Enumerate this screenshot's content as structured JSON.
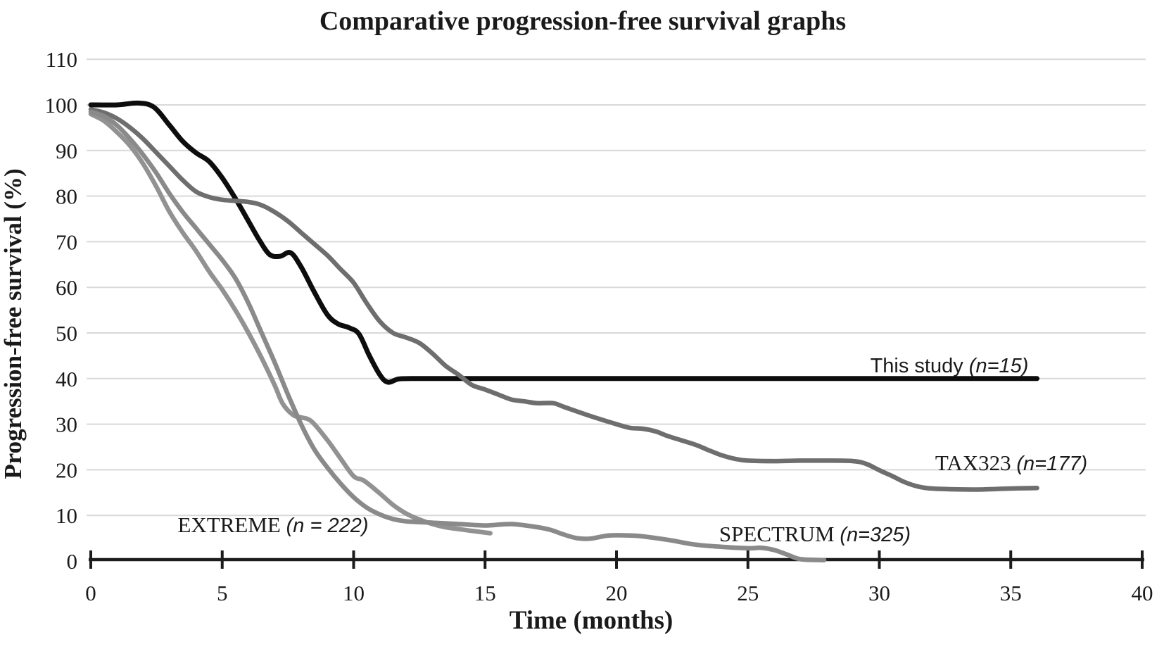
{
  "title": "Comparative progression-free survival graphs",
  "chart_data": {
    "type": "line",
    "title": "Comparative progression-free survival graphs",
    "xlabel": "Time (months)",
    "ylabel": "Progression-free survival (%)",
    "xlim": [
      0,
      40
    ],
    "ylim": [
      0,
      110
    ],
    "x_ticks": [
      0,
      5,
      10,
      15,
      20,
      25,
      30,
      35,
      40
    ],
    "y_ticks": [
      0,
      10,
      20,
      30,
      40,
      50,
      60,
      70,
      80,
      90,
      100,
      110
    ],
    "grid": "horizontal",
    "gridline_color": "#d9d9d9",
    "axis_color": "#1c1c1c",
    "legend_position": "inline-labels",
    "series": [
      {
        "name": "This study ",
        "n_label": "(n=15)",
        "color": "#0d0d0d",
        "stroke_width": 7,
        "points": [
          [
            0,
            100
          ],
          [
            1,
            100
          ],
          [
            1.8,
            100.4
          ],
          [
            2.4,
            99.5
          ],
          [
            3,
            95.5
          ],
          [
            3.5,
            92
          ],
          [
            4,
            89.5
          ],
          [
            4.5,
            87.6
          ],
          [
            5,
            84
          ],
          [
            5.5,
            79.5
          ],
          [
            6,
            74.5
          ],
          [
            6.4,
            70.5
          ],
          [
            6.8,
            67.2
          ],
          [
            7.2,
            66.8
          ],
          [
            7.6,
            67.6
          ],
          [
            8,
            64.5
          ],
          [
            8.5,
            59
          ],
          [
            9,
            54
          ],
          [
            9.4,
            52
          ],
          [
            9.8,
            51.2
          ],
          [
            10.2,
            49.8
          ],
          [
            10.6,
            45
          ],
          [
            11,
            40.8
          ],
          [
            11.3,
            39.2
          ],
          [
            11.7,
            39.9
          ],
          [
            12.2,
            40
          ],
          [
            14,
            40
          ],
          [
            18,
            40
          ],
          [
            22,
            40
          ],
          [
            26,
            40
          ],
          [
            30,
            40
          ],
          [
            33,
            40
          ],
          [
            36,
            40
          ]
        ]
      },
      {
        "name": "TAX323 ",
        "n_label": "(n=177)",
        "color": "#6e6e6e",
        "stroke_width": 6.5,
        "points": [
          [
            0,
            99
          ],
          [
            0.5,
            98.3
          ],
          [
            1,
            97
          ],
          [
            1.5,
            95
          ],
          [
            2,
            92.5
          ],
          [
            2.5,
            89.5
          ],
          [
            3,
            86.5
          ],
          [
            3.5,
            83.5
          ],
          [
            4,
            81
          ],
          [
            4.5,
            79.8
          ],
          [
            5,
            79.2
          ],
          [
            6,
            78.7
          ],
          [
            6.5,
            78
          ],
          [
            7,
            76.5
          ],
          [
            7.5,
            74.5
          ],
          [
            8,
            72
          ],
          [
            8.5,
            69.5
          ],
          [
            9,
            67
          ],
          [
            9.5,
            64
          ],
          [
            10,
            61
          ],
          [
            10.5,
            56.5
          ],
          [
            11,
            52.5
          ],
          [
            11.5,
            50
          ],
          [
            12,
            49
          ],
          [
            12.5,
            47.8
          ],
          [
            13,
            45.5
          ],
          [
            13.5,
            42.8
          ],
          [
            14,
            40.8
          ],
          [
            14.5,
            38.6
          ],
          [
            15,
            37.6
          ],
          [
            15.5,
            36.5
          ],
          [
            16,
            35.4
          ],
          [
            16.5,
            35
          ],
          [
            17,
            34.6
          ],
          [
            17.6,
            34.6
          ],
          [
            18,
            33.8
          ],
          [
            19,
            31.8
          ],
          [
            20,
            30
          ],
          [
            20.5,
            29.2
          ],
          [
            21,
            29
          ],
          [
            21.5,
            28.4
          ],
          [
            22,
            27.3
          ],
          [
            23,
            25.5
          ],
          [
            23.5,
            24.3
          ],
          [
            24,
            23.2
          ],
          [
            24.5,
            22.4
          ],
          [
            25,
            22
          ],
          [
            26,
            21.9
          ],
          [
            27,
            22
          ],
          [
            28,
            22
          ],
          [
            29,
            21.9
          ],
          [
            29.5,
            21.3
          ],
          [
            30,
            19.9
          ],
          [
            30.5,
            18.6
          ],
          [
            31,
            17.2
          ],
          [
            31.5,
            16.3
          ],
          [
            32,
            15.9
          ],
          [
            33,
            15.7
          ],
          [
            34,
            15.7
          ],
          [
            35,
            15.9
          ],
          [
            36,
            16
          ]
        ]
      },
      {
        "name": "EXTREME ",
        "n_label": "(n = 222)",
        "color": "#929292",
        "stroke_width": 6.5,
        "points": [
          [
            0,
            98
          ],
          [
            0.5,
            96.5
          ],
          [
            1,
            94
          ],
          [
            1.5,
            91
          ],
          [
            2,
            87
          ],
          [
            2.5,
            82
          ],
          [
            3,
            76.5
          ],
          [
            3.5,
            72
          ],
          [
            4,
            68
          ],
          [
            4.5,
            63.5
          ],
          [
            5,
            59.5
          ],
          [
            5.5,
            55
          ],
          [
            6,
            50
          ],
          [
            6.5,
            44.5
          ],
          [
            7,
            38.5
          ],
          [
            7.3,
            34.5
          ],
          [
            7.7,
            32
          ],
          [
            8,
            31.5
          ],
          [
            8.4,
            30.6
          ],
          [
            9,
            26.5
          ],
          [
            9.5,
            22.5
          ],
          [
            10,
            18.6
          ],
          [
            10.4,
            17.6
          ],
          [
            11,
            14.8
          ],
          [
            11.5,
            12.3
          ],
          [
            12,
            10.4
          ],
          [
            12.5,
            9.1
          ],
          [
            13,
            8.1
          ],
          [
            13.5,
            7.4
          ],
          [
            14,
            7
          ],
          [
            14.5,
            6.6
          ],
          [
            15.2,
            6.1
          ]
        ]
      },
      {
        "name": "SPECTRUM ",
        "n_label": "(n=325)",
        "color": "#8a8a8a",
        "stroke_width": 6.5,
        "points": [
          [
            0,
            98.5
          ],
          [
            0.5,
            97.5
          ],
          [
            1,
            95.5
          ],
          [
            1.5,
            92.5
          ],
          [
            2,
            89
          ],
          [
            2.5,
            85
          ],
          [
            3,
            80.5
          ],
          [
            3.5,
            76.5
          ],
          [
            4,
            73
          ],
          [
            4.5,
            69.5
          ],
          [
            5,
            66
          ],
          [
            5.5,
            62
          ],
          [
            6,
            56.5
          ],
          [
            6.5,
            50
          ],
          [
            7,
            43.5
          ],
          [
            7.5,
            36.5
          ],
          [
            8,
            30
          ],
          [
            8.5,
            24.5
          ],
          [
            9,
            20.5
          ],
          [
            9.5,
            17
          ],
          [
            10,
            14
          ],
          [
            10.5,
            11.7
          ],
          [
            11,
            10.2
          ],
          [
            11.5,
            9.2
          ],
          [
            12,
            8.7
          ],
          [
            13,
            8.4
          ],
          [
            14,
            8.1
          ],
          [
            15,
            7.8
          ],
          [
            16,
            8.1
          ],
          [
            17,
            7.4
          ],
          [
            17.5,
            6.8
          ],
          [
            18,
            5.8
          ],
          [
            18.5,
            5
          ],
          [
            19,
            4.9
          ],
          [
            19.7,
            5.6
          ],
          [
            20.5,
            5.6
          ],
          [
            21,
            5.4
          ],
          [
            22,
            4.6
          ],
          [
            23,
            3.6
          ],
          [
            24,
            3.1
          ],
          [
            25,
            2.8
          ],
          [
            25.5,
            2.9
          ],
          [
            26,
            2.4
          ],
          [
            26.5,
            1.4
          ],
          [
            27,
            0.4
          ],
          [
            27.9,
            0.2
          ]
        ]
      }
    ]
  }
}
